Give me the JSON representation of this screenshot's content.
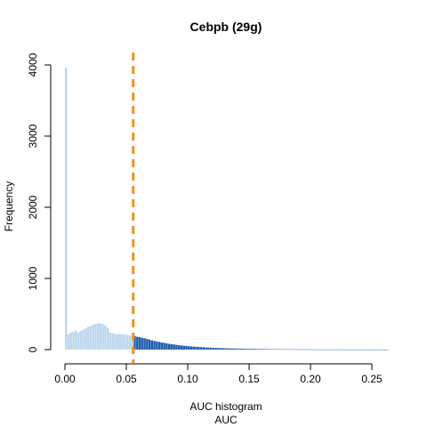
{
  "chart_data": {
    "type": "bar",
    "title": "Cebpb (29g)",
    "xlabel_lines": [
      "AUC histogram",
      "AUC"
    ],
    "ylabel": "Frequency",
    "xlim": [
      0,
      0.263
    ],
    "ylim": [
      0,
      4000
    ],
    "x_ticks": [
      0.0,
      0.05,
      0.1,
      0.15,
      0.2,
      0.25
    ],
    "x_tick_labels": [
      "0.00",
      "0.05",
      "0.10",
      "0.15",
      "0.20",
      "0.25"
    ],
    "y_ticks": [
      0,
      1000,
      2000,
      3000,
      4000
    ],
    "y_tick_labels": [
      "0",
      "1000",
      "2000",
      "3000",
      "4000"
    ],
    "bin_width": 0.002,
    "bin_start": 0,
    "threshold": 0.0556,
    "colors": {
      "below_threshold": "#bdd7ee",
      "above_threshold": "#1f5fa8",
      "threshold_line": "#f0901e"
    },
    "values": [
      3960,
      220,
      240,
      250,
      270,
      240,
      260,
      280,
      300,
      320,
      330,
      350,
      360,
      370,
      370,
      360,
      340,
      300,
      240,
      230,
      220,
      220,
      220,
      210,
      210,
      205,
      200,
      195,
      190,
      180,
      175,
      165,
      160,
      150,
      140,
      130,
      122,
      115,
      108,
      100,
      95,
      88,
      82,
      76,
      72,
      67,
      62,
      58,
      55,
      52,
      48,
      45,
      42,
      40,
      37,
      35,
      33,
      31,
      29,
      27,
      25,
      24,
      22,
      21,
      20,
      19,
      18,
      17,
      16,
      15,
      14,
      13,
      13,
      12,
      11,
      11,
      10,
      10,
      9,
      9,
      8,
      8,
      7,
      7,
      7,
      6,
      6,
      6,
      5,
      5,
      5,
      5,
      4,
      4,
      4,
      4,
      3,
      3,
      3,
      3,
      3,
      3,
      2,
      2,
      2,
      2,
      2,
      2,
      2,
      2,
      2,
      2,
      1,
      1,
      1,
      1,
      1,
      1,
      1,
      1,
      1,
      1,
      1,
      1,
      1,
      1,
      1,
      1,
      1,
      1,
      1,
      1
    ]
  }
}
